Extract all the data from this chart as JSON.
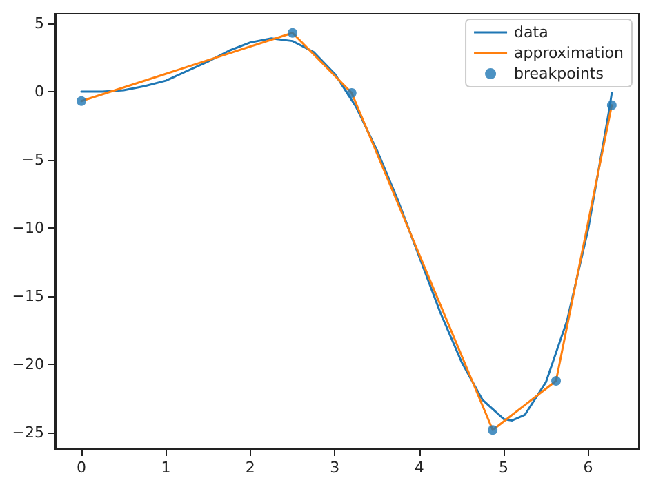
{
  "chart_data": {
    "type": "line",
    "xlim": [
      -0.31,
      6.6
    ],
    "ylim": [
      -26.2,
      5.7
    ],
    "xticks": [
      0,
      1,
      2,
      3,
      4,
      5,
      6
    ],
    "yticks": [
      -25,
      -20,
      -15,
      -10,
      -5,
      0,
      5
    ],
    "grid": false,
    "legend": "top right",
    "line_style": "solid",
    "series": [
      {
        "name": "data",
        "color": "#1f77b4",
        "marker": "none",
        "x": [
          0,
          0.25,
          0.5,
          0.75,
          1,
          1.25,
          1.5,
          1.75,
          2,
          2.25,
          2.5,
          2.75,
          3,
          3.25,
          3.5,
          3.75,
          4,
          4.25,
          4.5,
          4.75,
          5,
          5.1,
          5.25,
          5.5,
          5.75,
          6,
          6.25,
          6.28
        ],
        "values": [
          0,
          0,
          0.1,
          0.4,
          0.8,
          1.5,
          2.2,
          3,
          3.6,
          3.9,
          3.7,
          2.9,
          1.3,
          -1.1,
          -4.3,
          -8,
          -12.1,
          -16.2,
          -19.8,
          -22.6,
          -24,
          -24.1,
          -23.7,
          -21.3,
          -16.8,
          -10.1,
          -1.3,
          -0.1
        ]
      },
      {
        "name": "approximation",
        "color": "#ff7f0e",
        "marker": "none",
        "x": [
          0,
          2.5,
          3.2,
          4.87,
          5.62,
          6.28
        ],
        "values": [
          -0.7,
          4.3,
          -0.1,
          -24.8,
          -21.2,
          -1.0
        ]
      },
      {
        "name": "breakpoints",
        "type": "scatter",
        "color": "#1f77b4",
        "marker": "circle",
        "x": [
          0,
          2.5,
          3.2,
          4.87,
          5.62,
          6.28
        ],
        "values": [
          -0.7,
          4.3,
          -0.1,
          -24.8,
          -21.2,
          -1.0
        ]
      }
    ]
  }
}
